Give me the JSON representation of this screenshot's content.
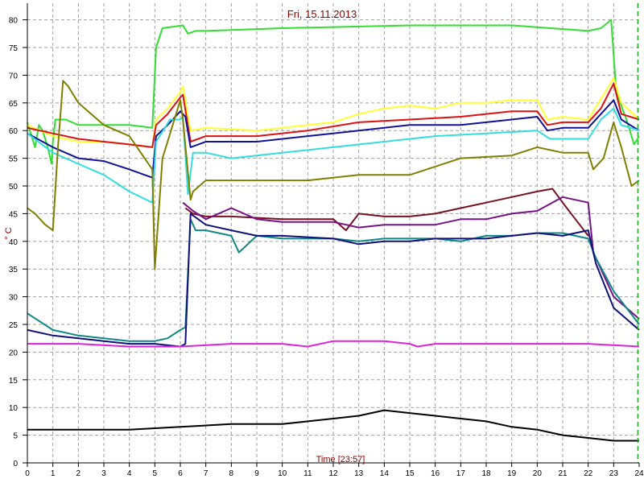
{
  "chart_data": {
    "type": "line",
    "title": "Fri, 15.11.2013",
    "xlabel": "Time [23:57]",
    "ylabel": "° C",
    "xlim": [
      0,
      24
    ],
    "ylim": [
      0,
      83
    ],
    "x_ticks": [
      0,
      1,
      2,
      3,
      4,
      5,
      6,
      7,
      8,
      9,
      10,
      11,
      12,
      13,
      14,
      15,
      16,
      17,
      18,
      19,
      20,
      21,
      22,
      23,
      24
    ],
    "y_ticks": [
      0,
      5,
      10,
      15,
      20,
      25,
      30,
      35,
      40,
      45,
      50,
      55,
      60,
      65,
      70,
      75,
      80
    ],
    "grid": true,
    "current_time_marker": 23.95,
    "series": [
      {
        "color": "#33dd33",
        "points": [
          [
            0,
            61.5
          ],
          [
            0.3,
            57
          ],
          [
            0.45,
            61
          ],
          [
            0.6,
            60
          ],
          [
            0.8,
            57
          ],
          [
            0.95,
            54
          ],
          [
            1,
            58
          ],
          [
            1.1,
            62
          ],
          [
            1.5,
            62
          ],
          [
            2,
            61
          ],
          [
            3,
            61
          ],
          [
            4,
            61
          ],
          [
            4.9,
            60.5
          ],
          [
            5.05,
            75
          ],
          [
            5.3,
            78.5
          ],
          [
            6.1,
            79
          ],
          [
            6.3,
            77.5
          ],
          [
            6.6,
            78
          ],
          [
            7,
            78
          ],
          [
            10,
            78.5
          ],
          [
            15,
            79
          ],
          [
            19,
            79
          ],
          [
            22,
            78
          ],
          [
            22.5,
            78.5
          ],
          [
            22.9,
            80
          ],
          [
            23.1,
            67
          ],
          [
            23.5,
            62
          ],
          [
            23.8,
            57.5
          ],
          [
            24,
            59
          ]
        ]
      },
      {
        "color": "#ffff33",
        "points": [
          [
            0,
            61
          ],
          [
            1,
            59
          ],
          [
            2,
            58
          ],
          [
            3,
            58
          ],
          [
            4,
            57.5
          ],
          [
            4.9,
            57
          ],
          [
            5.05,
            62
          ],
          [
            5.5,
            64
          ],
          [
            6,
            67
          ],
          [
            6.1,
            68
          ],
          [
            6.4,
            60
          ],
          [
            7,
            60.5
          ],
          [
            9,
            60
          ],
          [
            11,
            61
          ],
          [
            12,
            61.5
          ],
          [
            13,
            63
          ],
          [
            14,
            64
          ],
          [
            15,
            64.5
          ],
          [
            16,
            64
          ],
          [
            17,
            65
          ],
          [
            18,
            65
          ],
          [
            19,
            65.5
          ],
          [
            20,
            65.5
          ],
          [
            20.4,
            62
          ],
          [
            21,
            62.5
          ],
          [
            22,
            62
          ],
          [
            23,
            69.5
          ],
          [
            23.3,
            65
          ],
          [
            24,
            62
          ]
        ]
      },
      {
        "color": "#dd1111",
        "points": [
          [
            0,
            60.5
          ],
          [
            1,
            59.5
          ],
          [
            2,
            58.5
          ],
          [
            3,
            58
          ],
          [
            4,
            57.5
          ],
          [
            4.9,
            57
          ],
          [
            5.05,
            61
          ],
          [
            5.5,
            63
          ],
          [
            6,
            66
          ],
          [
            6.1,
            66.5
          ],
          [
            6.4,
            58
          ],
          [
            7,
            59
          ],
          [
            9,
            59
          ],
          [
            11,
            60
          ],
          [
            13,
            61.5
          ],
          [
            15,
            62
          ],
          [
            17,
            62.5
          ],
          [
            19,
            63.5
          ],
          [
            20,
            63.5
          ],
          [
            20.4,
            61
          ],
          [
            21,
            61.5
          ],
          [
            22,
            61.5
          ],
          [
            22.5,
            64
          ],
          [
            23,
            68.5
          ],
          [
            23.3,
            63
          ],
          [
            24,
            62
          ]
        ]
      },
      {
        "color": "#111199",
        "points": [
          [
            0,
            59.5
          ],
          [
            1,
            57
          ],
          [
            2,
            55
          ],
          [
            3,
            54.5
          ],
          [
            4,
            53
          ],
          [
            4.9,
            51.5
          ],
          [
            5.05,
            59
          ],
          [
            5.5,
            61
          ],
          [
            6,
            63.5
          ],
          [
            6.2,
            62.5
          ],
          [
            6.4,
            57
          ],
          [
            7,
            58
          ],
          [
            9,
            58
          ],
          [
            11,
            59
          ],
          [
            13,
            60
          ],
          [
            15,
            61
          ],
          [
            17,
            61
          ],
          [
            19,
            62
          ],
          [
            20,
            62.5
          ],
          [
            20.4,
            60
          ],
          [
            21,
            60.5
          ],
          [
            22,
            60.5
          ],
          [
            22.5,
            63
          ],
          [
            23,
            65.5
          ],
          [
            23.3,
            62
          ],
          [
            24,
            60
          ]
        ]
      },
      {
        "color": "#33dddd",
        "points": [
          [
            0,
            59.5
          ],
          [
            1,
            56
          ],
          [
            2,
            54
          ],
          [
            3,
            52
          ],
          [
            4,
            49
          ],
          [
            4.9,
            47
          ],
          [
            5.05,
            58
          ],
          [
            5.6,
            62
          ],
          [
            6,
            62
          ],
          [
            6.1,
            62.5
          ],
          [
            6.3,
            48.5
          ],
          [
            6.5,
            56
          ],
          [
            7,
            56
          ],
          [
            8,
            55
          ],
          [
            10,
            56
          ],
          [
            12,
            57
          ],
          [
            14,
            58
          ],
          [
            16,
            59
          ],
          [
            18,
            59.5
          ],
          [
            20,
            60
          ],
          [
            20.5,
            58.5
          ],
          [
            22,
            58.5
          ],
          [
            22.5,
            62
          ],
          [
            23,
            64
          ],
          [
            23.3,
            61
          ],
          [
            24,
            60
          ]
        ]
      },
      {
        "color": "#808000",
        "points": [
          [
            0,
            46
          ],
          [
            0.3,
            45
          ],
          [
            0.7,
            43
          ],
          [
            1,
            42
          ],
          [
            1.2,
            57
          ],
          [
            1.4,
            69
          ],
          [
            1.6,
            68
          ],
          [
            2,
            65
          ],
          [
            3,
            61
          ],
          [
            4,
            59
          ],
          [
            4.9,
            53
          ],
          [
            5,
            35
          ],
          [
            5.3,
            55
          ],
          [
            5.5,
            58
          ],
          [
            6,
            65.5
          ],
          [
            6.1,
            62
          ],
          [
            6.4,
            47.5
          ],
          [
            6.5,
            49
          ],
          [
            7,
            51
          ],
          [
            9,
            51
          ],
          [
            11,
            51
          ],
          [
            13,
            52
          ],
          [
            15,
            52
          ],
          [
            17,
            55
          ],
          [
            19,
            55.5
          ],
          [
            20,
            57
          ],
          [
            21,
            56
          ],
          [
            22,
            56
          ],
          [
            22.2,
            53
          ],
          [
            22.6,
            55
          ],
          [
            23,
            61.5
          ],
          [
            23.3,
            57
          ],
          [
            23.7,
            50
          ],
          [
            24,
            51
          ]
        ]
      },
      {
        "color": "#771122",
        "points": [
          [
            6.2,
            46
          ],
          [
            6.5,
            45
          ],
          [
            7,
            44.5
          ],
          [
            8,
            44.5
          ],
          [
            10,
            44
          ],
          [
            12,
            44
          ],
          [
            12.5,
            42
          ],
          [
            13,
            45
          ],
          [
            14,
            44.5
          ],
          [
            15,
            44.5
          ],
          [
            16,
            45
          ],
          [
            17,
            46
          ],
          [
            18,
            47
          ],
          [
            19,
            48
          ],
          [
            20,
            49
          ],
          [
            20.6,
            49.5
          ],
          [
            21,
            47
          ],
          [
            21.5,
            44
          ],
          [
            22,
            41
          ]
        ]
      },
      {
        "color": "#771188",
        "points": [
          [
            6.1,
            47
          ],
          [
            6.5,
            45.5
          ],
          [
            7,
            44
          ],
          [
            8,
            46
          ],
          [
            9,
            44
          ],
          [
            10,
            43.5
          ],
          [
            12,
            43.5
          ],
          [
            13,
            42.5
          ],
          [
            14,
            43
          ],
          [
            16,
            43
          ],
          [
            17,
            44
          ],
          [
            18,
            44
          ],
          [
            19,
            45
          ],
          [
            20,
            45.5
          ],
          [
            21,
            48
          ],
          [
            22,
            47
          ],
          [
            22.2,
            38
          ],
          [
            23,
            30
          ],
          [
            24,
            26
          ]
        ]
      },
      {
        "color": "#118888",
        "points": [
          [
            0,
            27
          ],
          [
            1,
            24
          ],
          [
            2,
            23
          ],
          [
            3,
            22.5
          ],
          [
            4,
            22
          ],
          [
            5,
            22
          ],
          [
            5.5,
            22.5
          ],
          [
            6,
            24
          ],
          [
            6.2,
            24.5
          ],
          [
            6.4,
            44
          ],
          [
            6.6,
            42
          ],
          [
            7,
            42
          ],
          [
            8,
            41
          ],
          [
            8.3,
            38
          ],
          [
            9,
            41
          ],
          [
            10,
            40.5
          ],
          [
            11,
            40.5
          ],
          [
            12,
            40.5
          ],
          [
            13,
            40
          ],
          [
            14,
            40.5
          ],
          [
            15,
            40.5
          ],
          [
            16,
            40.5
          ],
          [
            17,
            40
          ],
          [
            18,
            41
          ],
          [
            19,
            41
          ],
          [
            20,
            41.5
          ],
          [
            21,
            41.5
          ],
          [
            22,
            40.5
          ],
          [
            22.3,
            37
          ],
          [
            23,
            31
          ],
          [
            24,
            25
          ]
        ]
      },
      {
        "color": "#111177",
        "points": [
          [
            0,
            24
          ],
          [
            1,
            23
          ],
          [
            2,
            22.5
          ],
          [
            3,
            22
          ],
          [
            4,
            21.5
          ],
          [
            5,
            21.5
          ],
          [
            6,
            21
          ],
          [
            6.2,
            21.5
          ],
          [
            6.4,
            45
          ],
          [
            7,
            43
          ],
          [
            8,
            42
          ],
          [
            9,
            41
          ],
          [
            10,
            41
          ],
          [
            12,
            40.5
          ],
          [
            13,
            39.5
          ],
          [
            14,
            40
          ],
          [
            15,
            40
          ],
          [
            16,
            40.5
          ],
          [
            17,
            40.5
          ],
          [
            18,
            40.5
          ],
          [
            19,
            41
          ],
          [
            20,
            41.5
          ],
          [
            21,
            41
          ],
          [
            22,
            42
          ],
          [
            22.3,
            36
          ],
          [
            23,
            28
          ],
          [
            24,
            24
          ]
        ]
      },
      {
        "color": "#dd22dd",
        "points": [
          [
            0,
            21.5
          ],
          [
            2,
            21.5
          ],
          [
            4,
            21
          ],
          [
            6,
            21
          ],
          [
            8,
            21.5
          ],
          [
            10,
            21.5
          ],
          [
            11,
            21
          ],
          [
            12,
            22
          ],
          [
            14,
            22
          ],
          [
            15,
            21.5
          ],
          [
            15.3,
            21
          ],
          [
            16,
            21.5
          ],
          [
            18,
            21.5
          ],
          [
            20,
            21.5
          ],
          [
            22,
            21.5
          ],
          [
            24,
            21
          ]
        ]
      },
      {
        "color": "#000000",
        "points": [
          [
            0,
            6
          ],
          [
            2,
            6
          ],
          [
            4,
            6
          ],
          [
            6,
            6.5
          ],
          [
            8,
            7
          ],
          [
            10,
            7
          ],
          [
            11,
            7.5
          ],
          [
            12,
            8
          ],
          [
            13,
            8.5
          ],
          [
            14,
            9.5
          ],
          [
            15,
            9
          ],
          [
            16,
            8.5
          ],
          [
            17,
            8
          ],
          [
            18,
            7.5
          ],
          [
            19,
            6.5
          ],
          [
            20,
            6
          ],
          [
            21,
            5
          ],
          [
            22,
            4.5
          ],
          [
            23,
            4
          ],
          [
            24,
            4
          ]
        ]
      }
    ]
  }
}
